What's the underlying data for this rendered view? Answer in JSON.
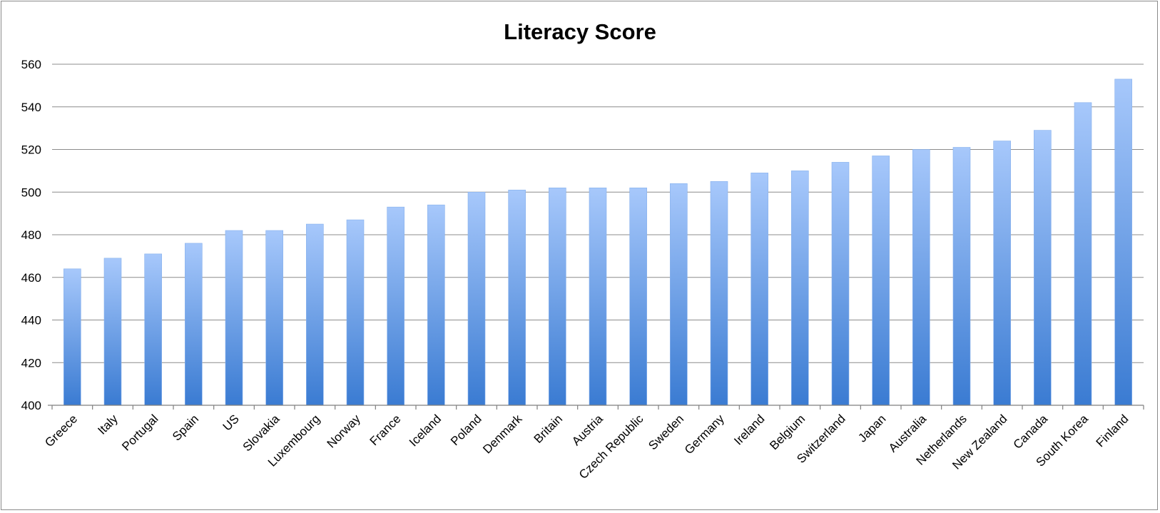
{
  "chart_data": {
    "type": "bar",
    "title": "Literacy Score",
    "xlabel": "",
    "ylabel": "",
    "ylim": [
      400,
      560
    ],
    "yticks": [
      400,
      420,
      440,
      460,
      480,
      500,
      520,
      540,
      560
    ],
    "grid": true,
    "legend": "none",
    "bar_color_top": "#a7c8fb",
    "bar_color_bottom": "#3a7bd2",
    "categories": [
      "Greece",
      "Italy",
      "Portugal",
      "Spain",
      "US",
      "Slovakia",
      "Luxembourg",
      "Norway",
      "France",
      "Iceland",
      "Poland",
      "Denmark",
      "Britain",
      "Austria",
      "Czech Republic",
      "Sweden",
      "Germany",
      "Ireland",
      "Belgium",
      "Switzerland",
      "Japan",
      "Australia",
      "Netherlands",
      "New Zealand",
      "Canada",
      "South Korea",
      "Finland"
    ],
    "values": [
      464,
      469,
      471,
      476,
      482,
      482,
      485,
      487,
      493,
      494,
      500,
      501,
      502,
      502,
      502,
      504,
      505,
      509,
      510,
      514,
      517,
      520,
      521,
      524,
      529,
      542,
      553
    ]
  }
}
